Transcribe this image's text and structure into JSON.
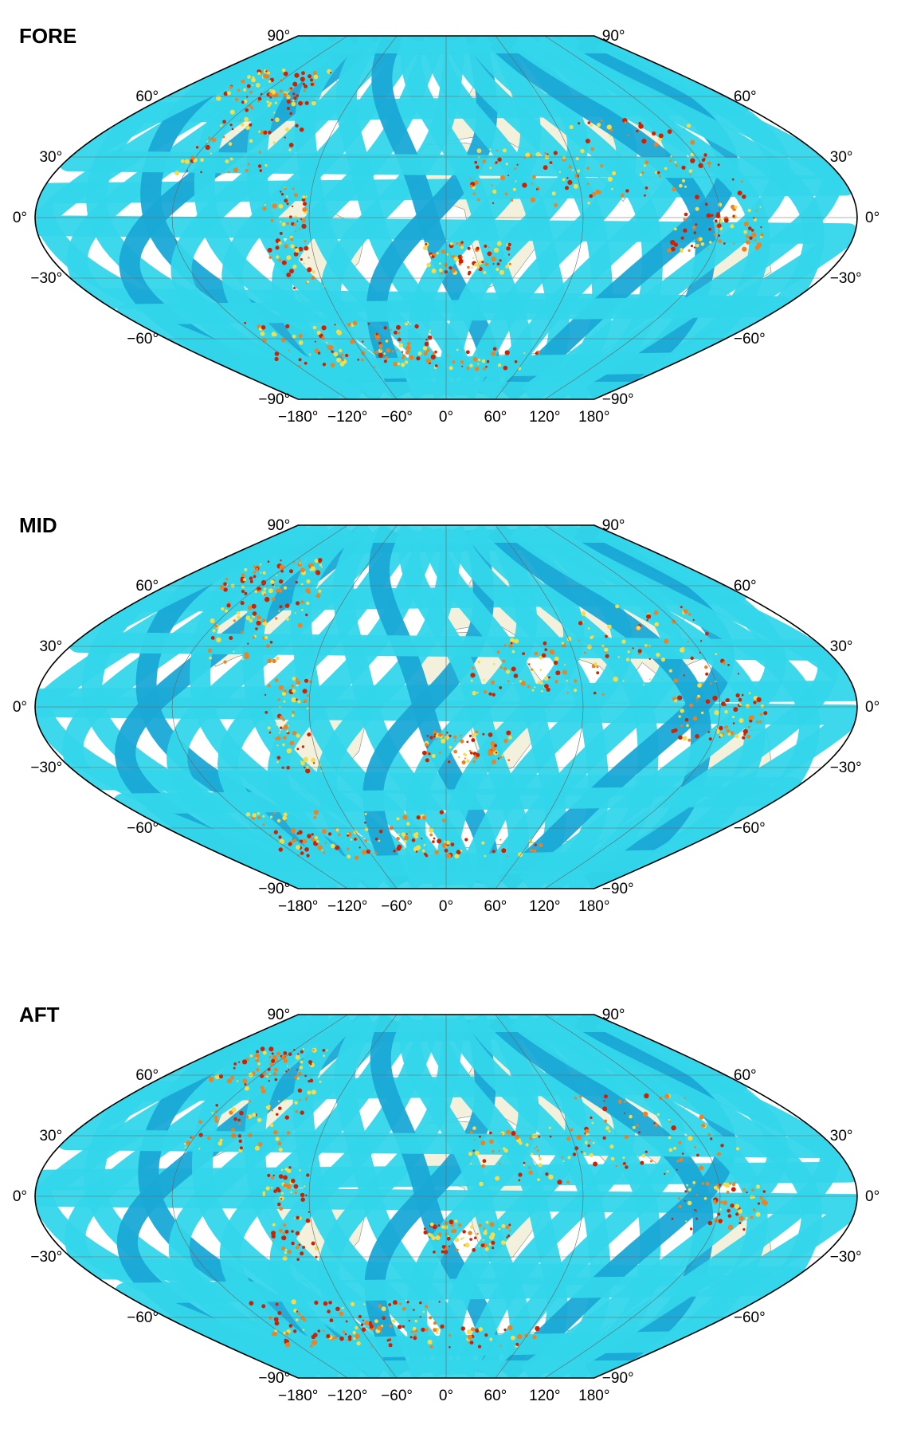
{
  "panels": [
    {
      "label": "FORE"
    },
    {
      "label": "MID"
    },
    {
      "label": "AFT"
    }
  ],
  "projection": "sinusoidal-like global map",
  "lat_ticks": [
    "90°",
    "60°",
    "30°",
    "0°",
    "−30°",
    "−60°",
    "−90°"
  ],
  "lon_ticks": [
    "−180°",
    "−120°",
    "−60°",
    "0°",
    "60°",
    "120°",
    "180°"
  ],
  "colors": {
    "swath": "#33d6ea",
    "swath_dark": "#1aa8d6",
    "hot": "#f08020",
    "hot_dark": "#d02000",
    "yellow": "#f5dc4a",
    "land": "#f3f0dc",
    "grid": "#666666"
  }
}
